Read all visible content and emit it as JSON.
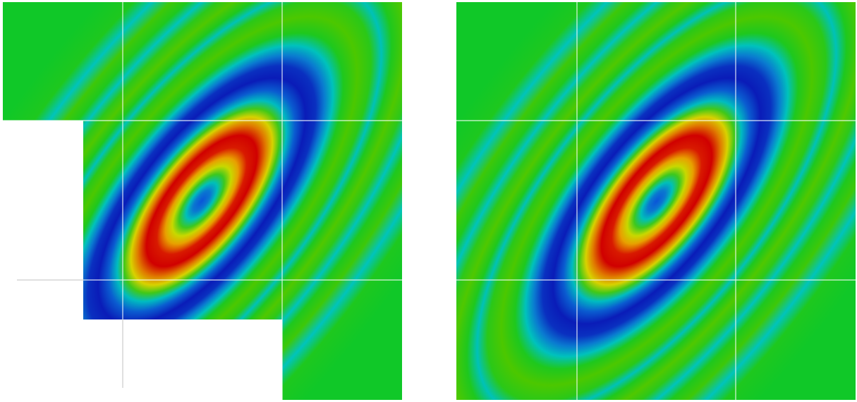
{
  "figure": {
    "panels": [
      {
        "id": "left",
        "description_key": "partial-tile-field",
        "tiles_present": [
          [
            true,
            true,
            true
          ],
          [
            false,
            true,
            true
          ],
          [
            false,
            false,
            true
          ]
        ]
      },
      {
        "id": "right",
        "description_key": "complete-tile-field",
        "tiles_present": [
          [
            true,
            true,
            true
          ],
          [
            true,
            true,
            true
          ],
          [
            true,
            true,
            true
          ]
        ]
      }
    ],
    "colormap": [
      "#0a1fb8",
      "#0a5fd0",
      "#00c2c2",
      "#1ec81e",
      "#5ac800",
      "#e6dc00",
      "#e08a00",
      "#d40000"
    ],
    "grid_line_color": "#ffffff"
  }
}
